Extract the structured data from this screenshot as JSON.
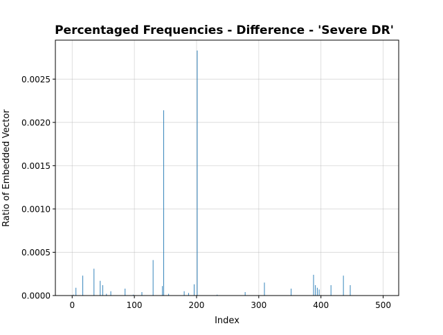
{
  "chart_data": {
    "type": "bar",
    "title": "Percentaged Frequencies - Difference - 'Severe DR'",
    "xlabel": "Index",
    "ylabel": "Ratio of Embedded Vector",
    "xlim": [
      -27,
      525
    ],
    "ylim": [
      0,
      0.00295
    ],
    "xticks": [
      0,
      100,
      200,
      300,
      400,
      500
    ],
    "yticks": [
      0.0,
      0.0005,
      0.001,
      0.0015,
      0.002,
      0.0025
    ],
    "ytick_labels": [
      "0.0000",
      "0.0005",
      "0.0010",
      "0.0015",
      "0.0020",
      "0.0025"
    ],
    "grid": true,
    "bar_color": "#1f77b4",
    "x": [
      2,
      6,
      17,
      35,
      45,
      49,
      55,
      62,
      85,
      98,
      112,
      130,
      145,
      147,
      155,
      180,
      187,
      196,
      201,
      233,
      278,
      309,
      352,
      388,
      391,
      394,
      397,
      416,
      436,
      447
    ],
    "values": [
      1e-05,
      9e-05,
      0.00023,
      0.00031,
      0.00017,
      0.00012,
      2e-05,
      5e-05,
      8e-05,
      1e-05,
      4e-05,
      0.00041,
      0.00011,
      0.00214,
      2e-05,
      5e-05,
      3e-05,
      0.00013,
      0.00283,
      1e-05,
      4e-05,
      0.00015,
      8e-05,
      0.00024,
      0.00012,
      9e-05,
      7e-05,
      0.00012,
      0.00023,
      0.00012
    ]
  }
}
